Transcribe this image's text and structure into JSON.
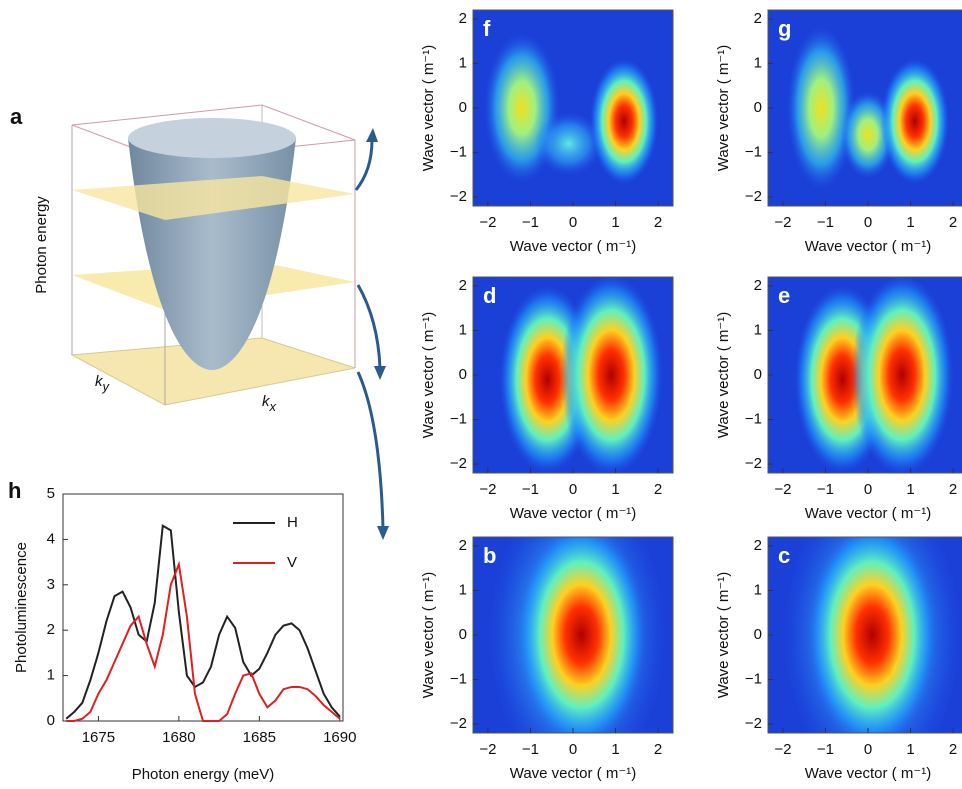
{
  "chart_data": [
    {
      "type": "diagram",
      "label": "a",
      "ylabel": "Photon energy",
      "axis_labels": [
        {
          "base": "k",
          "sub": "y"
        },
        {
          "base": "k",
          "sub": "x"
        }
      ]
    },
    {
      "type": "heatmap",
      "label": "f",
      "xlabel": "Wave vector (  m⁻¹)",
      "ylabel": "Wave vector (  m⁻¹)",
      "xlim": [
        -2.35,
        2.35
      ],
      "ylim": [
        -2.2,
        2.2
      ],
      "xticks": [
        {
          "value": -2,
          "label": "−2"
        },
        {
          "value": -1,
          "label": "−1"
        },
        0,
        1,
        2
      ],
      "yticks": [
        {
          "value": -2,
          "label": "−2"
        },
        {
          "value": -1,
          "label": "−1"
        },
        0,
        1,
        2
      ]
    },
    {
      "type": "heatmap",
      "label": "g",
      "xlabel": "Wave vector (  m⁻¹)",
      "ylabel": "Wave vector (  m⁻¹)",
      "xlim": [
        -2.35,
        2.35
      ],
      "ylim": [
        -2.2,
        2.2
      ],
      "xticks": [
        {
          "value": -2,
          "label": "−2"
        },
        {
          "value": -1,
          "label": "−1"
        },
        0,
        1,
        2
      ],
      "yticks": [
        {
          "value": -2,
          "label": "−2"
        },
        {
          "value": -1,
          "label": "−1"
        },
        0,
        1,
        2
      ]
    },
    {
      "type": "heatmap",
      "label": "d",
      "xlabel": "Wave vector (  m⁻¹)",
      "ylabel": "Wave vector (  m⁻¹)",
      "xlim": [
        -2.35,
        2.35
      ],
      "ylim": [
        -2.2,
        2.2
      ],
      "xticks": [
        {
          "value": -2,
          "label": "−2"
        },
        {
          "value": -1,
          "label": "−1"
        },
        0,
        1,
        2
      ],
      "yticks": [
        {
          "value": -2,
          "label": "−2"
        },
        {
          "value": -1,
          "label": "−1"
        },
        0,
        1,
        2
      ]
    },
    {
      "type": "heatmap",
      "label": "e",
      "xlabel": "Wave vector (  m⁻¹)",
      "ylabel": "Wave vector (  m⁻¹)",
      "xlim": [
        -2.35,
        2.35
      ],
      "ylim": [
        -2.2,
        2.2
      ],
      "xticks": [
        {
          "value": -2,
          "label": "−2"
        },
        {
          "value": -1,
          "label": "−1"
        },
        0,
        1,
        2
      ],
      "yticks": [
        {
          "value": -2,
          "label": "−2"
        },
        {
          "value": -1,
          "label": "−1"
        },
        0,
        1,
        2
      ]
    },
    {
      "type": "heatmap",
      "label": "b",
      "xlabel": "Wave vector (  m⁻¹)",
      "ylabel": "Wave vector (  m⁻¹)",
      "xlim": [
        -2.35,
        2.35
      ],
      "ylim": [
        -2.2,
        2.2
      ],
      "xticks": [
        {
          "value": -2,
          "label": "−2"
        },
        {
          "value": -1,
          "label": "−1"
        },
        0,
        1,
        2
      ],
      "yticks": [
        {
          "value": -2,
          "label": "−2"
        },
        {
          "value": -1,
          "label": "−1"
        },
        0,
        1,
        2
      ]
    },
    {
      "type": "heatmap",
      "label": "c",
      "xlabel": "Wave vector (  m⁻¹)",
      "ylabel": "Wave vector (  m⁻¹)",
      "xlim": [
        -2.35,
        2.35
      ],
      "ylim": [
        -2.2,
        2.2
      ],
      "xticks": [
        {
          "value": -2,
          "label": "−2"
        },
        {
          "value": -1,
          "label": "−1"
        },
        0,
        1,
        2
      ],
      "yticks": [
        {
          "value": -2,
          "label": "−2"
        },
        {
          "value": -1,
          "label": "−1"
        },
        0,
        1,
        2
      ]
    },
    {
      "type": "line",
      "label": "h",
      "xlabel": "Photon energy (meV)",
      "ylabel": "Photoluminescence",
      "x": [
        1673,
        1673.5,
        1674,
        1674.5,
        1675,
        1675.5,
        1676,
        1676.5,
        1677,
        1677.5,
        1678,
        1678.5,
        1679,
        1679.5,
        1680,
        1680.5,
        1681,
        1681.5,
        1682,
        1682.5,
        1683,
        1683.5,
        1684,
        1684.5,
        1685,
        1685.5,
        1686,
        1686.5,
        1687,
        1687.5,
        1688,
        1688.5,
        1689,
        1689.5,
        1690
      ],
      "series": [
        {
          "name": "H",
          "color": "#222222",
          "values": [
            0.05,
            0.2,
            0.4,
            0.9,
            1.5,
            2.2,
            2.75,
            2.85,
            2.5,
            1.9,
            1.75,
            2.6,
            4.3,
            4.2,
            2.4,
            1.0,
            0.75,
            0.85,
            1.2,
            1.9,
            2.3,
            2.05,
            1.3,
            1.0,
            1.15,
            1.5,
            1.9,
            2.1,
            2.15,
            2.0,
            1.6,
            1.1,
            0.6,
            0.3,
            0.1
          ]
        },
        {
          "name": "V",
          "color": "#e02020",
          "values": [
            0,
            0,
            0.05,
            0.2,
            0.6,
            0.9,
            1.3,
            1.7,
            2.1,
            2.3,
            1.7,
            1.2,
            1.9,
            3.0,
            3.45,
            2.3,
            0.6,
            0,
            0,
            0,
            0.15,
            0.6,
            1.0,
            1.05,
            0.6,
            0.3,
            0.45,
            0.7,
            0.75,
            0.75,
            0.7,
            0.55,
            0.35,
            0.2,
            0.05
          ]
        }
      ],
      "xlim": [
        1672.8,
        1690.2
      ],
      "ylim": [
        0,
        5
      ],
      "xticks": [
        1675,
        1680,
        1685,
        1690
      ],
      "yticks": [
        0,
        1,
        2,
        3,
        4,
        5
      ],
      "legend": "upper right"
    }
  ]
}
